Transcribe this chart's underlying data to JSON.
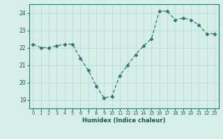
{
  "x": [
    0,
    1,
    2,
    3,
    4,
    5,
    6,
    7,
    8,
    9,
    10,
    11,
    12,
    13,
    14,
    15,
    16,
    17,
    18,
    19,
    20,
    21,
    22,
    23
  ],
  "y": [
    22.2,
    22.0,
    22.0,
    22.1,
    22.2,
    22.2,
    21.4,
    20.7,
    19.8,
    19.1,
    19.2,
    20.4,
    21.0,
    21.6,
    22.1,
    22.5,
    24.1,
    24.1,
    23.6,
    23.7,
    23.6,
    23.3,
    22.8,
    22.8
  ],
  "xlabel": "Humidex (Indice chaleur)",
  "ylim": [
    18.5,
    24.5
  ],
  "xlim": [
    -0.5,
    23.5
  ],
  "yticks": [
    19,
    20,
    21,
    22,
    23,
    24
  ],
  "xticks": [
    0,
    1,
    2,
    3,
    4,
    5,
    6,
    7,
    8,
    9,
    10,
    11,
    12,
    13,
    14,
    15,
    16,
    17,
    18,
    19,
    20,
    21,
    22,
    23
  ],
  "line_color": "#2d7a6a",
  "marker_size": 2.5,
  "bg_color": "#d6eeea",
  "grid_color": "#b8ddd8",
  "spine_color": "#2d7a6a",
  "text_color": "#1a5a4a"
}
